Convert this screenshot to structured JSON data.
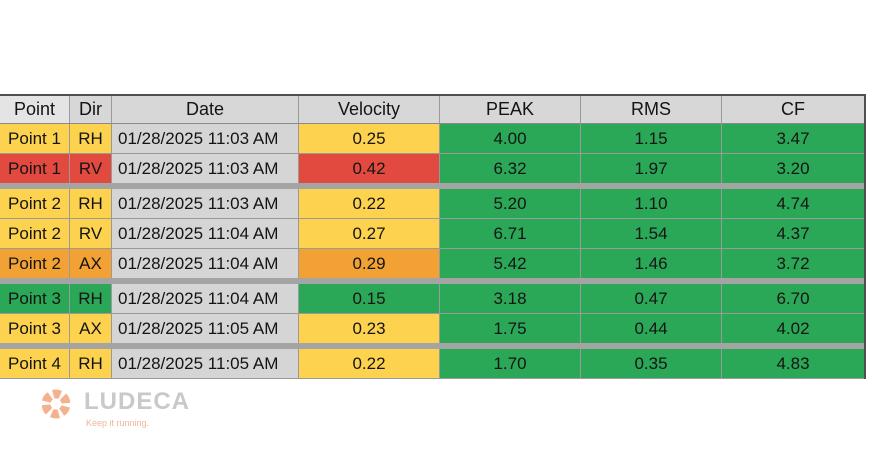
{
  "table": {
    "headers": [
      "Point",
      "Dir",
      "Date",
      "Velocity",
      "PEAK",
      "RMS",
      "CF"
    ],
    "rows": [
      {
        "point": "Point 1",
        "dir": "RH",
        "date": "01/28/2025 11:03 AM",
        "velocity": "0.25",
        "peak": "4.00",
        "rms": "1.15",
        "cf": "3.47",
        "point_status": "yellow",
        "velocity_status": "yellow",
        "group_end": false
      },
      {
        "point": "Point 1",
        "dir": "RV",
        "date": "01/28/2025 11:03 AM",
        "velocity": "0.42",
        "peak": "6.32",
        "rms": "1.97",
        "cf": "3.20",
        "point_status": "red",
        "velocity_status": "red",
        "group_end": true
      },
      {
        "point": "Point 2",
        "dir": "RH",
        "date": "01/28/2025 11:03 AM",
        "velocity": "0.22",
        "peak": "5.20",
        "rms": "1.10",
        "cf": "4.74",
        "point_status": "yellow",
        "velocity_status": "yellow",
        "group_end": false
      },
      {
        "point": "Point 2",
        "dir": "RV",
        "date": "01/28/2025 11:04 AM",
        "velocity": "0.27",
        "peak": "6.71",
        "rms": "1.54",
        "cf": "4.37",
        "point_status": "yellow",
        "velocity_status": "yellow",
        "group_end": false
      },
      {
        "point": "Point 2",
        "dir": "AX",
        "date": "01/28/2025 11:04 AM",
        "velocity": "0.29",
        "peak": "5.42",
        "rms": "1.46",
        "cf": "3.72",
        "point_status": "orange",
        "velocity_status": "orange",
        "group_end": true
      },
      {
        "point": "Point 3",
        "dir": "RH",
        "date": "01/28/2025 11:04 AM",
        "velocity": "0.15",
        "peak": "3.18",
        "rms": "0.47",
        "cf": "6.70",
        "point_status": "green",
        "velocity_status": "green",
        "group_end": false
      },
      {
        "point": "Point 3",
        "dir": "AX",
        "date": "01/28/2025 11:05 AM",
        "velocity": "0.23",
        "peak": "1.75",
        "rms": "0.44",
        "cf": "4.02",
        "point_status": "yellow",
        "velocity_status": "yellow",
        "group_end": true
      },
      {
        "point": "Point 4",
        "dir": "RH",
        "date": "01/28/2025 11:05 AM",
        "velocity": "0.22",
        "peak": "1.70",
        "rms": "0.35",
        "cf": "4.83",
        "point_status": "yellow",
        "velocity_status": "yellow",
        "group_end": false
      }
    ]
  },
  "status_colors": {
    "green": "#2aa857",
    "yellow": "#fdd24f",
    "orange": "#f2a134",
    "red": "#e2493f"
  },
  "logo": {
    "wordmark": "LUDECA",
    "tagline": "Keep it running.",
    "icon": "ludeca-gear-icon",
    "mark_color": "#f4b18c"
  }
}
